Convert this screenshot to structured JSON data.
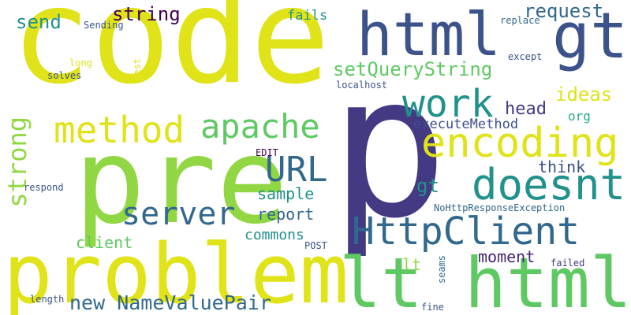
{
  "words": {
    "code": "code",
    "p": "p",
    "pre": "pre",
    "problem": "problem",
    "lt_html": "lt html",
    "html": "html",
    "gt": "gt",
    "encoding": "encoding",
    "doesnt": "doesnt",
    "method": "method",
    "apache": "apache",
    "work": "work",
    "httpclient": "HttpClient",
    "url": "URL",
    "server": "server",
    "strong": "strong",
    "new_namevaluepair": "new NameValuePair",
    "setquerystring": "setQueryString",
    "string": "string",
    "send": "send",
    "request": "request",
    "ideas": "ideas",
    "head": "head",
    "executemethod": "executeMethod",
    "org": "org",
    "think": "think",
    "gt_small": "gt",
    "sample": "sample",
    "report": "report",
    "moment": "moment",
    "client": "client",
    "commons": "commons",
    "lt_small": "lt",
    "fails": "fails",
    "sending": "Sending",
    "replace": "replace",
    "except": "except",
    "long": "long",
    "solves": "solves",
    "test": "test",
    "localhost": "localhost",
    "edit": "EDIT",
    "respond": "respond",
    "nohttpresponseexception": "NoHttpResponseException",
    "post": "POST",
    "seams": "seams",
    "failed": "failed",
    "length": "length",
    "fine": "fine"
  },
  "colors": {
    "yellow": "#dfe318",
    "lime": "#90d743",
    "green": "#5ec962",
    "teal": "#21918c",
    "sea": "#28ae80",
    "blue": "#3b528b",
    "steel": "#31688e",
    "indigo": "#443983",
    "purple": "#440154",
    "navy": "#482475"
  }
}
